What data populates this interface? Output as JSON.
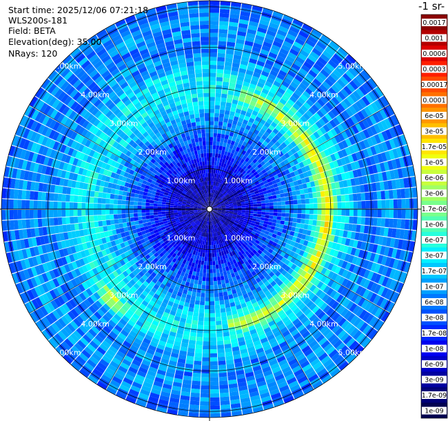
{
  "header": {
    "start_time": "Start time: 2025/12/06 07:21:18",
    "instrument": "WLS200s-181",
    "field": "Field: BETA",
    "elevation": "Elevation(deg): 35.00",
    "nrays": "NRays: 120"
  },
  "colorbar": {
    "title": "-1 sr-",
    "ticks": [
      "0.0017",
      "0.001",
      "0.0006",
      "0.0003",
      "0.00017",
      "0.0001",
      "6e-05",
      "3e-05",
      "1.7e-05",
      "1e-05",
      "6e-06",
      "3e-06",
      "1.7e-06",
      "1e-06",
      "6e-07",
      "3e-07",
      "1.7e-07",
      "1e-07",
      "6e-08",
      "3e-08",
      "1.7e-08",
      "1e-08",
      "6e-09",
      "3e-09",
      "1.7e-09",
      "1e-09"
    ],
    "colors": [
      "#8b0000",
      "#b40000",
      "#dc0000",
      "#ff1e00",
      "#ff4a00",
      "#ff7000",
      "#ff9600",
      "#ffbe00",
      "#ffe600",
      "#f0ff10",
      "#c8ff3c",
      "#a0ff64",
      "#78ff8c",
      "#50ffb4",
      "#28ffdc",
      "#00f0ff",
      "#00c8ff",
      "#00a0ff",
      "#0078ff",
      "#0050ff",
      "#0028ff",
      "#0000f0",
      "#0000c8",
      "#0000a0",
      "#000078",
      "#000050"
    ]
  },
  "chart_data": {
    "type": "heatmap",
    "projection": "polar (PPI scan)",
    "field": "BETA",
    "elevation_deg": 35.0,
    "nrays": 120,
    "range_rings_km": [
      1.0,
      2.0,
      3.0,
      4.0,
      5.0
    ],
    "range_labels": [
      "1.00km",
      "2.00km",
      "3.00km",
      "4.00km",
      "5.00km"
    ],
    "max_range_km": 5.15,
    "colorscale": "jet, log10(beta) from 1e-09 to 0.0017",
    "features": [
      {
        "description": "background",
        "value": 3e-08
      },
      {
        "description": "enhanced ring",
        "range_km": [
          2.4,
          3.6
        ],
        "value": 1.7e-07
      },
      {
        "description": "strong arc (east)",
        "range_km": [
          2.7,
          3.1
        ],
        "azimuth_deg": [
          15,
          170
        ],
        "value": 6e-06
      },
      {
        "description": "local maximum",
        "range_km": 3.3,
        "azimuth_deg": 227,
        "value": 3e-06
      },
      {
        "description": "near field",
        "range_km": [
          0,
          1.9
        ],
        "value": 6e-09
      }
    ]
  }
}
